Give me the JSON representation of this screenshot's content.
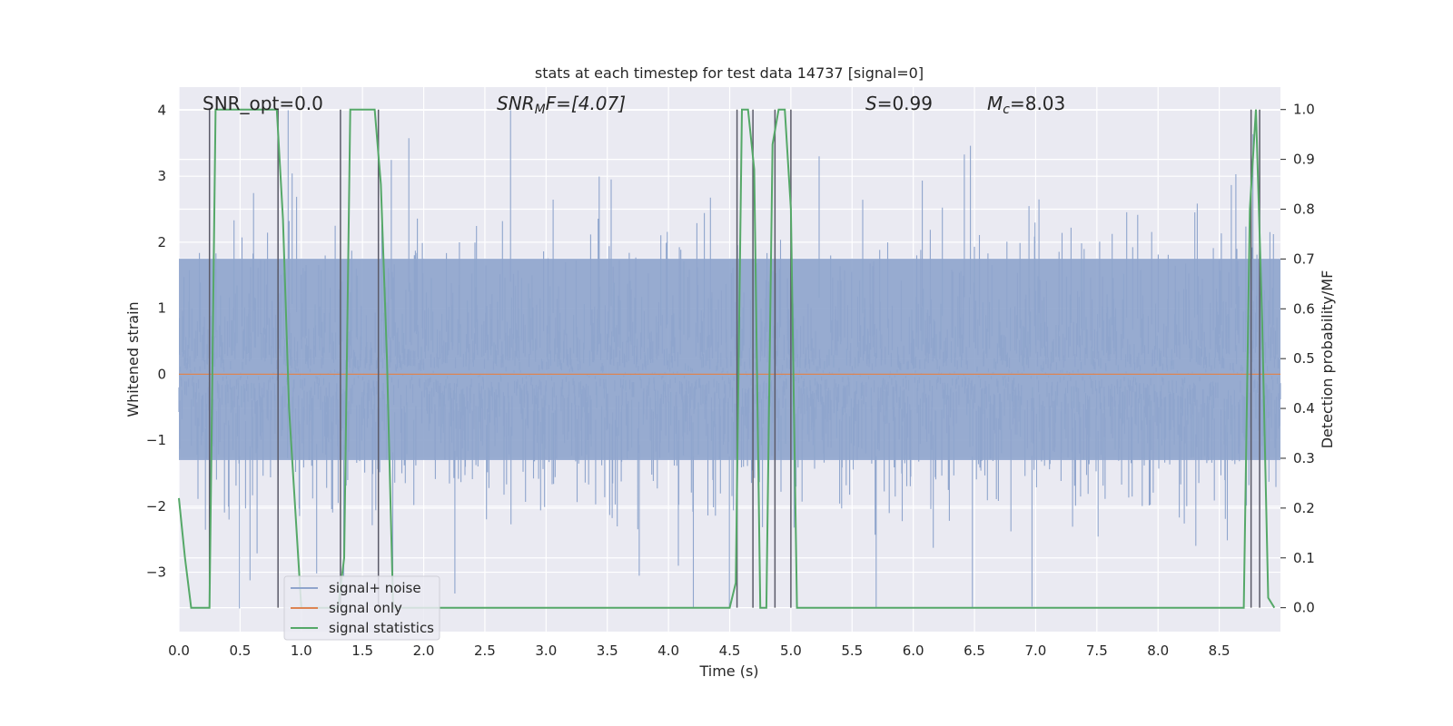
{
  "chart_data": {
    "type": "line",
    "title": "stats at each timestep for test data 14737 [signal=0]",
    "xlabel": "Time (s)",
    "ylabel": "Whitened strain",
    "y2label": "Detection probability/MF",
    "xlim": [
      0.0,
      9.0
    ],
    "ylim": [
      -3.9,
      4.35
    ],
    "y2lim": [
      -0.048,
      1.045
    ],
    "x_ticks": [
      "0.0",
      "0.5",
      "1.0",
      "1.5",
      "2.0",
      "2.5",
      "3.0",
      "3.5",
      "4.0",
      "4.5",
      "5.0",
      "5.5",
      "6.0",
      "6.5",
      "7.0",
      "7.5",
      "8.0",
      "8.5"
    ],
    "y_ticks": [
      "4",
      "3",
      "2",
      "1",
      "0",
      "−1",
      "−2",
      "−3"
    ],
    "y2_ticks": [
      "1.0",
      "0.9",
      "0.8",
      "0.7",
      "0.6",
      "0.5",
      "0.4",
      "0.3",
      "0.2",
      "0.1",
      "0.0"
    ],
    "grid": true,
    "legend_position": "lower-left",
    "annotations": {
      "snr_opt": "SNR_opt=0.0",
      "snr_mf_base": "SNR",
      "snr_mf_sub": "M",
      "snr_mf_rest": "F=[4.07]",
      "s_label": "S",
      "s_value": "=0.99",
      "mc_label": "M",
      "mc_sub": "c",
      "mc_value": "=8.03"
    },
    "series": [
      {
        "name": "signal+ noise",
        "color": "#8fa5cd",
        "kind": "noise",
        "x_range": [
          0.0,
          9.0
        ],
        "typical_range": [
          -1.3,
          1.75
        ],
        "extremes": [
          -3.55,
          4.0
        ]
      },
      {
        "name": "signal only",
        "color": "#dd8452",
        "kind": "flat",
        "value": 0.0
      },
      {
        "name": "signal statistics",
        "color": "#55a868",
        "axis": "right",
        "x": [
          0.0,
          0.05,
          0.1,
          0.25,
          0.3,
          0.35,
          0.4,
          0.5,
          0.6,
          0.7,
          0.8,
          0.85,
          0.9,
          1.0,
          1.05,
          1.1,
          1.2,
          1.3,
          1.35,
          1.4,
          1.45,
          1.5,
          1.6,
          1.65,
          1.7,
          1.75,
          1.8,
          4.5,
          4.55,
          4.6,
          4.65,
          4.7,
          4.75,
          4.8,
          4.85,
          4.9,
          4.95,
          5.0,
          5.05,
          5.1,
          5.15,
          8.7,
          8.75,
          8.8,
          8.85,
          8.9,
          8.95
        ],
        "y": [
          0.22,
          0.1,
          0.0,
          0.0,
          1.0,
          1.0,
          1.0,
          1.0,
          1.0,
          1.0,
          1.0,
          0.78,
          0.4,
          0.0,
          0.0,
          0.0,
          0.0,
          0.0,
          0.1,
          1.0,
          1.0,
          1.0,
          1.0,
          0.85,
          0.5,
          0.0,
          0.0,
          0.0,
          0.05,
          1.0,
          1.0,
          0.88,
          0.0,
          0.0,
          0.93,
          1.0,
          1.0,
          0.8,
          0.0,
          0.0,
          0.0,
          0.0,
          0.8,
          1.0,
          0.58,
          0.02,
          0.0
        ]
      }
    ],
    "vertical_lines_x": [
      0.25,
      0.81,
      1.32,
      1.63,
      4.56,
      4.69,
      4.87,
      5.0,
      8.76,
      8.83
    ]
  }
}
